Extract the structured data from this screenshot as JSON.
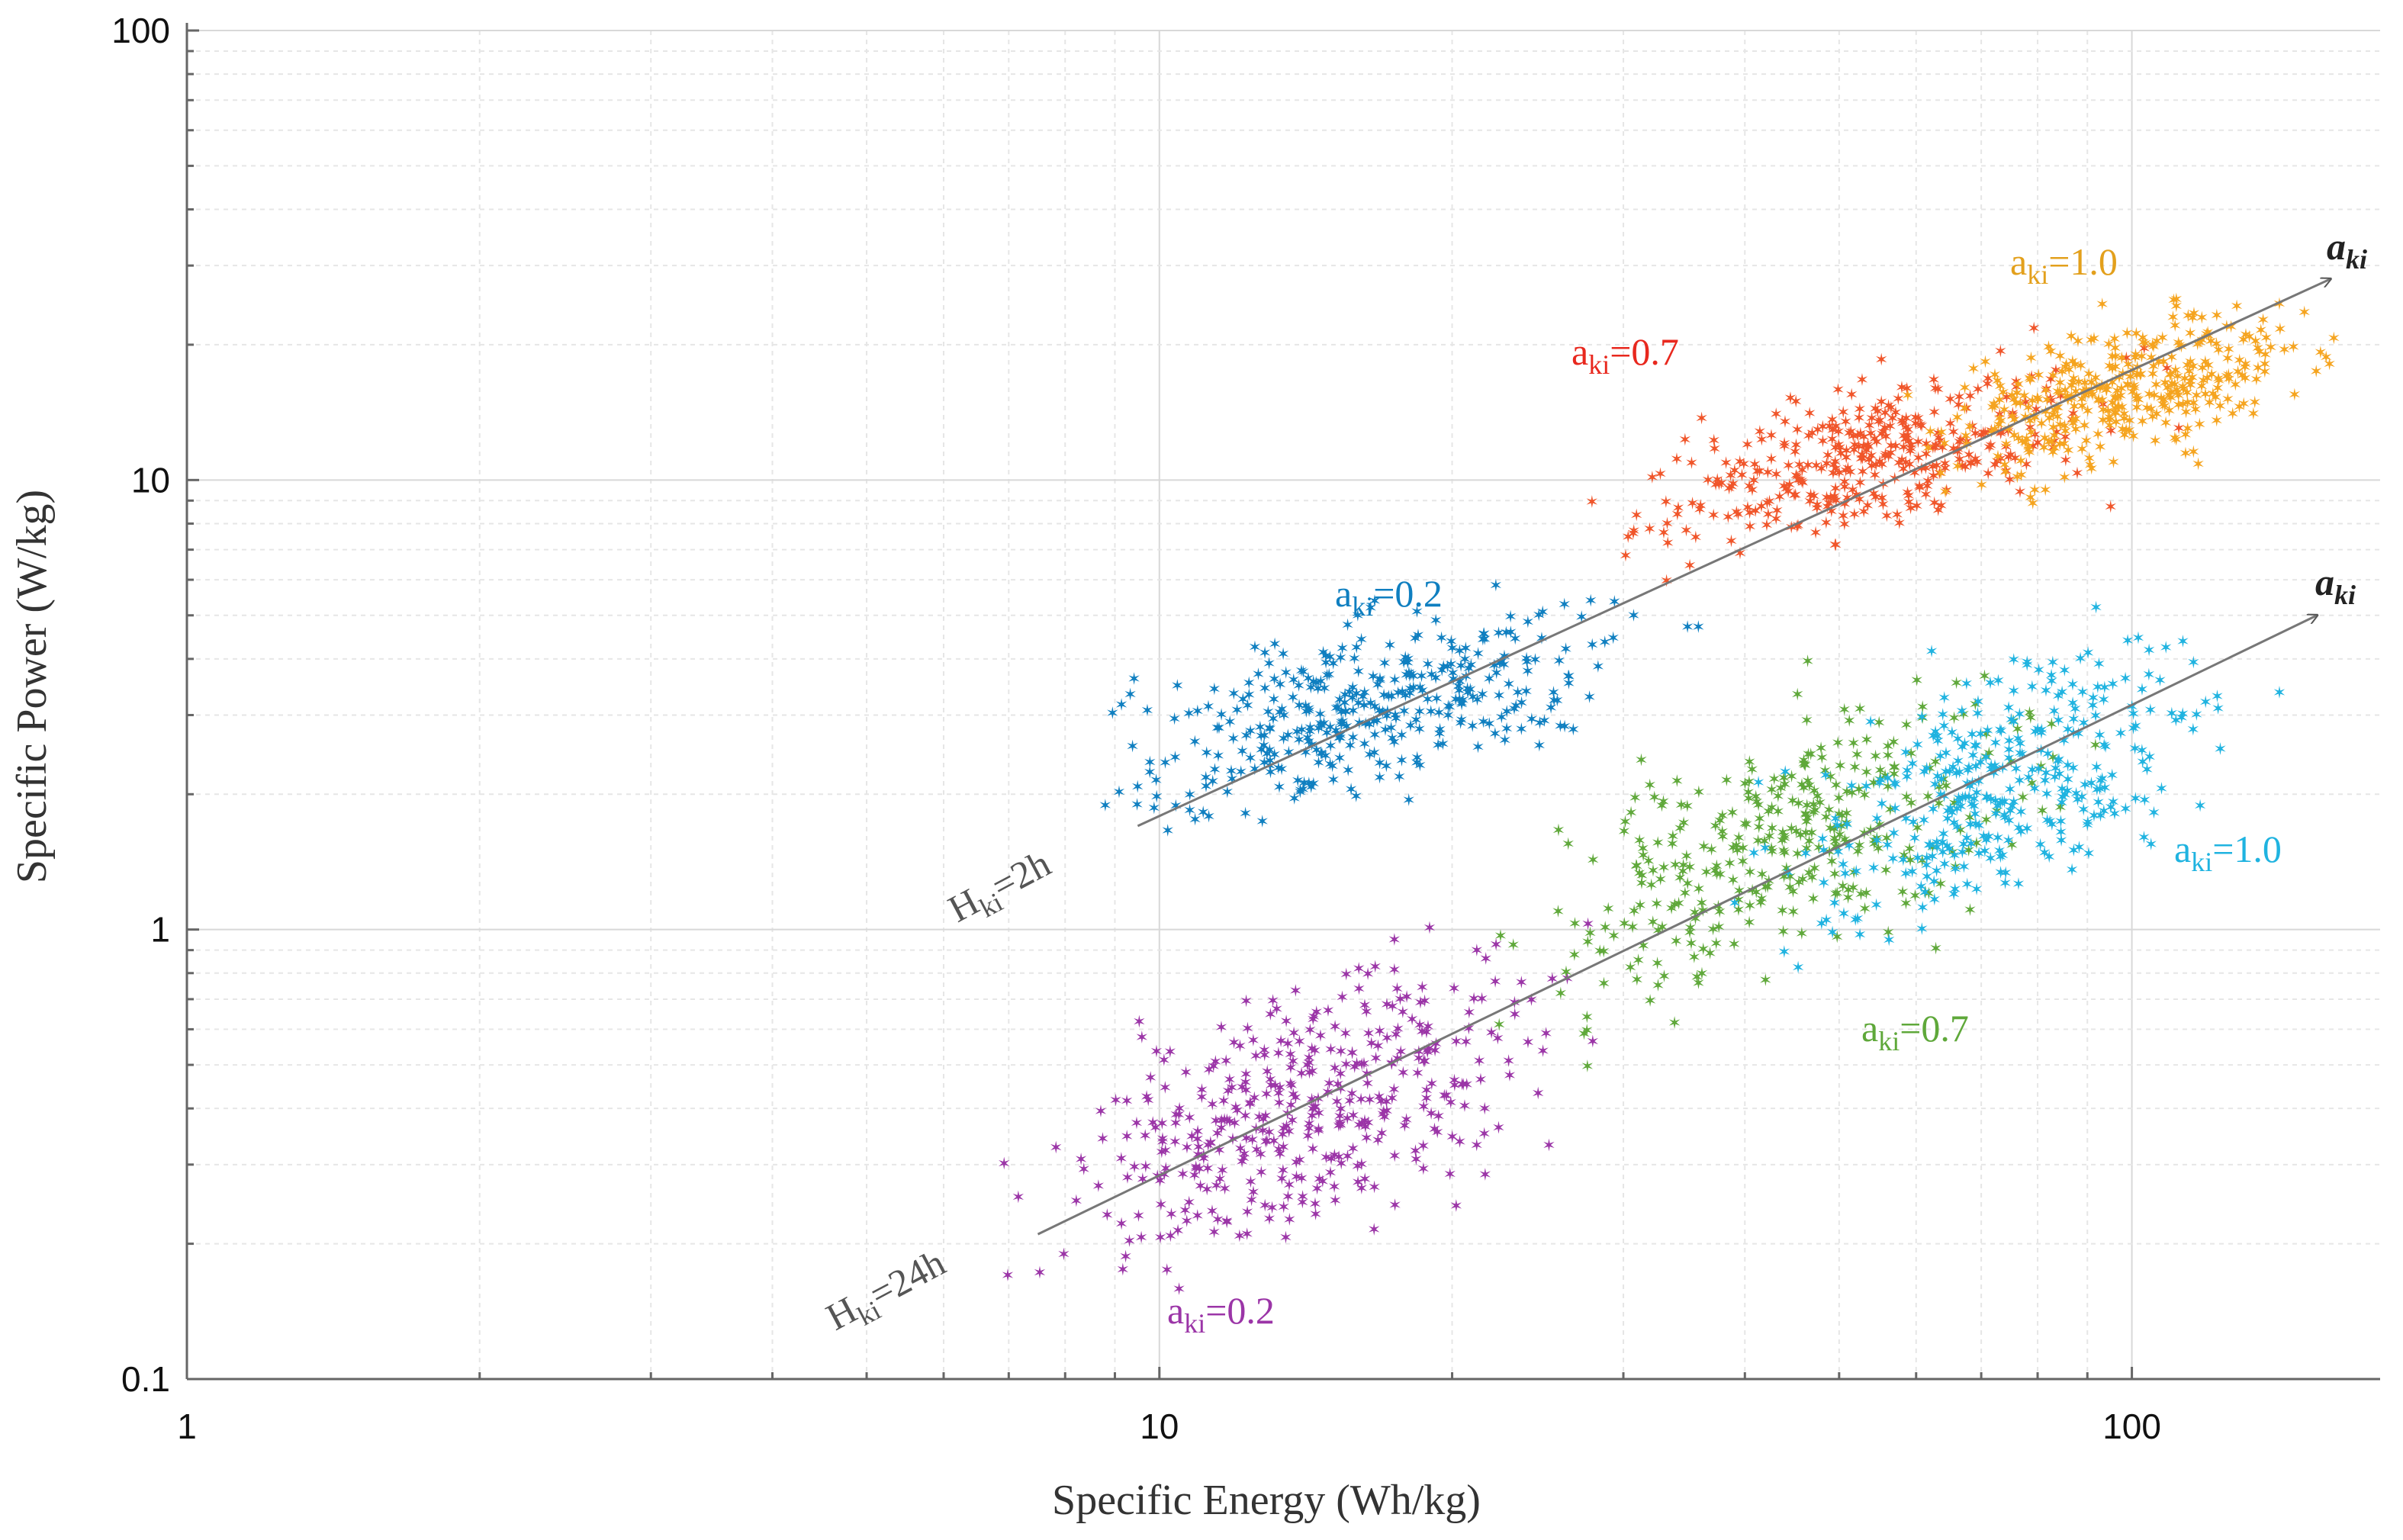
{
  "chart_data": {
    "type": "scatter",
    "title": "",
    "xlabel": "Specific Energy (Wh/kg)",
    "ylabel": "Specific Power (W/kg)",
    "xscale": "log",
    "yscale": "log",
    "xlim": [
      1,
      180
    ],
    "ylim": [
      0.1,
      100
    ],
    "grid": true,
    "xticks": [
      "1",
      "10",
      "100"
    ],
    "yticks": [
      "0.1",
      "1",
      "10",
      "100"
    ],
    "clusters": [
      {
        "label": "a_ki=0.2",
        "group": "H_ki=24h",
        "color": "#9b35a7",
        "x_range": [
          8,
          25
        ],
        "y_range": [
          0.18,
          0.85
        ],
        "count": 420
      },
      {
        "label": "a_ki=0.7",
        "group": "H_ki=24h",
        "color": "#5fa83a",
        "x_range": [
          25,
          80
        ],
        "y_range": [
          0.7,
          3.5
        ],
        "count": 360
      },
      {
        "label": "a_ki=1.0",
        "group": "H_ki=24h",
        "color": "#1fb3e0",
        "x_range": [
          45,
          120
        ],
        "y_range": [
          1.0,
          4.5
        ],
        "count": 360
      },
      {
        "label": "a_ki=0.2",
        "group": "H_ki=2h",
        "color": "#0f7fc0",
        "x_range": [
          9,
          30
        ],
        "y_range": [
          1.8,
          5.5
        ],
        "count": 380
      },
      {
        "label": "a_ki=0.7",
        "group": "H_ki=2h",
        "color": "#f0552a",
        "x_range": [
          32,
          90
        ],
        "y_range": [
          7,
          18
        ],
        "count": 380
      },
      {
        "label": "a_ki=1.0",
        "group": "H_ki=2h",
        "color": "#f5a41f",
        "x_range": [
          65,
          150
        ],
        "y_range": [
          10,
          25
        ],
        "count": 380
      }
    ],
    "trend_arrows": [
      {
        "label": "H_ki=2h",
        "from": [
          9.5,
          1.7
        ],
        "to": [
          160,
          28
        ]
      },
      {
        "label": "H_ki=24h",
        "from": [
          7.5,
          0.21
        ],
        "to": [
          155,
          5.0
        ]
      }
    ]
  },
  "labels": {
    "cluster_labels": [
      {
        "text_a": "a",
        "text_sub": "ki",
        "text_b": "=0.2",
        "color": "#9b35a7"
      },
      {
        "text_a": "a",
        "text_sub": "ki",
        "text_b": "=0.7",
        "color": "#5fa83a"
      },
      {
        "text_a": "a",
        "text_sub": "ki",
        "text_b": "=1.0",
        "color": "#1fb3e0"
      },
      {
        "text_a": "a",
        "text_sub": "ki",
        "text_b": "=0.2",
        "color": "#0f7fc0"
      },
      {
        "text_a": "a",
        "text_sub": "ki",
        "text_b": "=0.7",
        "color": "#e8281e"
      },
      {
        "text_a": "a",
        "text_sub": "ki",
        "text_b": "=1.0",
        "color": "#e3a01c"
      }
    ],
    "arrow_labels": [
      {
        "text_a": "H",
        "text_sub": "ki",
        "text_b": "=2h"
      },
      {
        "text_a": "H",
        "text_sub": "ki",
        "text_b": "=24h"
      }
    ],
    "arrow_head_label": {
      "text_a": "a",
      "text_sub": "ki"
    }
  }
}
